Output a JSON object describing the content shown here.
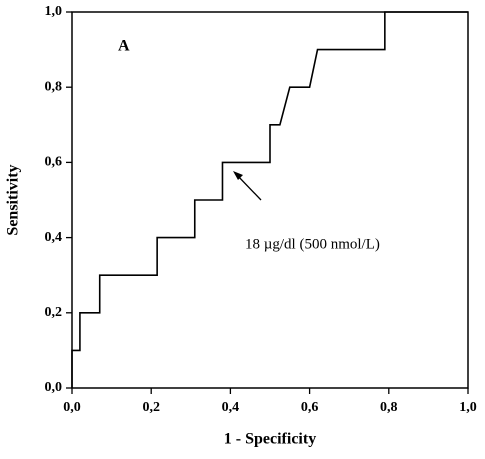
{
  "chart_data": {
    "type": "line",
    "x_label": "1 - Specificity",
    "y_label": "Sensitivity",
    "annotations": [
      "A",
      "18 µg/dl (500 nmol/L)"
    ],
    "x": [
      0,
      0,
      0.02,
      0.02,
      0.07,
      0.07,
      0.215,
      0.215,
      0.31,
      0.31,
      0.38,
      0.38,
      0.5,
      0.5,
      0.525,
      0.55,
      0.6,
      0.62,
      0.79,
      0.79,
      1.0
    ],
    "values": [
      0,
      0.1,
      0.1,
      0.2,
      0.2,
      0.3,
      0.3,
      0.4,
      0.4,
      0.5,
      0.5,
      0.6,
      0.6,
      0.7,
      0.7,
      0.8,
      0.8,
      0.9,
      0.9,
      1.0,
      1.0
    ],
    "color": "#000000",
    "xlim": [
      0,
      1
    ],
    "ylim": [
      0,
      1
    ],
    "xticks": [
      {
        "value": 0,
        "label": "0,0"
      },
      {
        "value": 0.2,
        "label": "0,2"
      },
      {
        "value": 0.4,
        "label": "0,4"
      },
      {
        "value": 0.6,
        "label": "0,6"
      },
      {
        "value": 0.8,
        "label": "0,8"
      },
      {
        "value": 1,
        "label": "1,0"
      }
    ],
    "yticks": [
      {
        "value": 0,
        "label": "0,0"
      },
      {
        "value": 0.2,
        "label": "0,2"
      },
      {
        "value": 0.4,
        "label": "0,4"
      },
      {
        "value": 0.6,
        "label": "0,6"
      },
      {
        "value": 0.8,
        "label": "0,8"
      },
      {
        "value": 1,
        "label": "1,0"
      }
    ],
    "grid": false
  }
}
